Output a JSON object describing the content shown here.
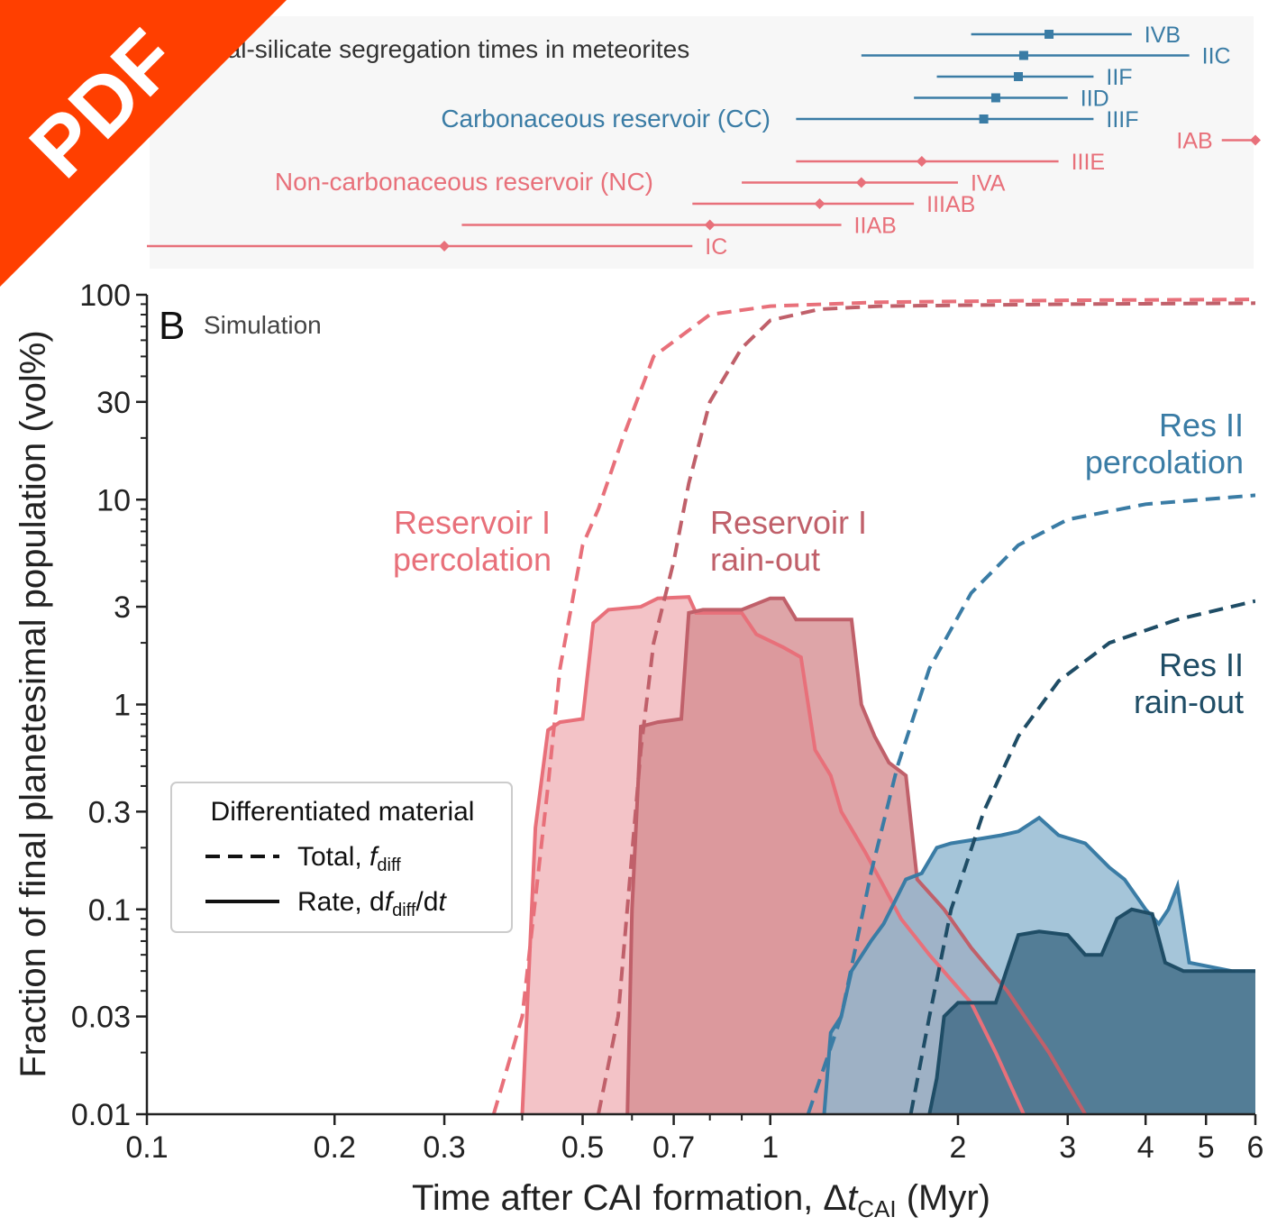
{
  "badge": {
    "label": "PDF",
    "color": "#ff3f00"
  },
  "top_panel": {
    "title": "Metal-silicate segregation times in meteorites",
    "cc_label": "Carbonaceous reservoir (CC)",
    "nc_label": "Non-carbonaceous reservoir (NC)",
    "cc_color": "#3a7ca5",
    "nc_color": "#e8707a",
    "meteorites": [
      {
        "name": "IVB",
        "group": "CC",
        "center": 2.8,
        "low": 2.1,
        "high": 3.8,
        "row": 0
      },
      {
        "name": "IIC",
        "group": "CC",
        "center": 2.55,
        "low": 1.4,
        "high": 4.7,
        "row": 1
      },
      {
        "name": "IIF",
        "group": "CC",
        "center": 2.5,
        "low": 1.85,
        "high": 3.3,
        "row": 2
      },
      {
        "name": "IID",
        "group": "CC",
        "center": 2.3,
        "low": 1.7,
        "high": 3.0,
        "row": 3
      },
      {
        "name": "IIIF",
        "group": "CC",
        "center": 2.2,
        "low": 1.1,
        "high": 3.3,
        "row": 4
      },
      {
        "name": "IAB",
        "group": "NC",
        "center": 6.0,
        "low": 5.3,
        "high": 6.0,
        "row": 5
      },
      {
        "name": "IIIE",
        "group": "NC",
        "center": 1.75,
        "low": 1.1,
        "high": 2.9,
        "row": 6
      },
      {
        "name": "IVA",
        "group": "NC",
        "center": 1.4,
        "low": 0.9,
        "high": 2.0,
        "row": 7
      },
      {
        "name": "IIIAB",
        "group": "NC",
        "center": 1.2,
        "low": 0.75,
        "high": 1.7,
        "row": 8
      },
      {
        "name": "IIAB",
        "group": "NC",
        "center": 0.8,
        "low": 0.32,
        "high": 1.3,
        "row": 9
      },
      {
        "name": "IC",
        "group": "NC",
        "center": 0.3,
        "low": 0.1,
        "high": 0.75,
        "row": 10
      }
    ]
  },
  "chart_data": {
    "type": "area",
    "panel_label": "B",
    "panel_subtitle": "Simulation",
    "xlabel_main": "Time after CAI formation, Δ",
    "xlabel_var": "t",
    "xlabel_sub": "CAI",
    "xlabel_unit": " (Myr)",
    "ylabel": "Fraction of final planetesimal population (vol%)",
    "x_scale": "log",
    "y_scale": "log",
    "xlim": [
      0.1,
      6
    ],
    "ylim": [
      0.01,
      100
    ],
    "x_ticks": [
      {
        "v": 0.1,
        "label": "0.1"
      },
      {
        "v": 0.2,
        "label": "0.2"
      },
      {
        "v": 0.3,
        "label": "0.3"
      },
      {
        "v": 0.5,
        "label": "0.5"
      },
      {
        "v": 0.7,
        "label": "0.7"
      },
      {
        "v": 1,
        "label": "1"
      },
      {
        "v": 2,
        "label": "2"
      },
      {
        "v": 3,
        "label": "3"
      },
      {
        "v": 4,
        "label": "4"
      },
      {
        "v": 5,
        "label": "5"
      },
      {
        "v": 6,
        "label": "6"
      }
    ],
    "y_ticks": [
      {
        "v": 0.01,
        "label": "0.01"
      },
      {
        "v": 0.03,
        "label": "0.03"
      },
      {
        "v": 0.1,
        "label": "0.1"
      },
      {
        "v": 0.3,
        "label": "0.3"
      },
      {
        "v": 1,
        "label": "1"
      },
      {
        "v": 3,
        "label": "3"
      },
      {
        "v": 10,
        "label": "10"
      },
      {
        "v": 30,
        "label": "30"
      },
      {
        "v": 100,
        "label": "100"
      }
    ],
    "legend": {
      "title": "Differentiated material",
      "total_label": "Total, ",
      "total_var": "f",
      "total_sub": "diff",
      "rate_label": "Rate, d",
      "rate_var": "f",
      "rate_sub": "diff",
      "rate_suffix": "/d",
      "rate_var2": "t",
      "placement": "lower-left"
    },
    "series": [
      {
        "id": "res1-perc",
        "label_lines": [
          "Reservoir I",
          "percolation"
        ],
        "color": "#e8707a",
        "fill": "#f0b4b9",
        "rate": [
          [
            0.4,
            0.01
          ],
          [
            0.41,
            0.05
          ],
          [
            0.42,
            0.25
          ],
          [
            0.44,
            0.75
          ],
          [
            0.46,
            0.82
          ],
          [
            0.5,
            0.85
          ],
          [
            0.52,
            2.5
          ],
          [
            0.55,
            2.9
          ],
          [
            0.62,
            3.0
          ],
          [
            0.66,
            3.3
          ],
          [
            0.74,
            3.35
          ],
          [
            0.76,
            2.8
          ],
          [
            0.9,
            2.8
          ],
          [
            0.95,
            2.2
          ],
          [
            1.05,
            1.9
          ],
          [
            1.12,
            1.7
          ],
          [
            1.18,
            0.6
          ],
          [
            1.25,
            0.45
          ],
          [
            1.3,
            0.3
          ],
          [
            1.42,
            0.19
          ],
          [
            1.52,
            0.13
          ],
          [
            1.62,
            0.09
          ],
          [
            1.8,
            0.06
          ],
          [
            2.1,
            0.035
          ],
          [
            2.3,
            0.02
          ],
          [
            2.55,
            0.01
          ]
        ],
        "total": [
          [
            0.36,
            0.01
          ],
          [
            0.4,
            0.03
          ],
          [
            0.44,
            0.4
          ],
          [
            0.46,
            1.5
          ],
          [
            0.5,
            6.0
          ],
          [
            0.53,
            9.0
          ],
          [
            0.58,
            20
          ],
          [
            0.65,
            50
          ],
          [
            0.8,
            80
          ],
          [
            1.0,
            88
          ],
          [
            1.5,
            92
          ],
          [
            3,
            94
          ],
          [
            6,
            95
          ]
        ]
      },
      {
        "id": "res1-rain",
        "label_lines": [
          "Reservoir I",
          "rain-out"
        ],
        "color": "#c0606a",
        "fill": "#d68f92",
        "rate": [
          [
            0.59,
            0.01
          ],
          [
            0.6,
            0.1
          ],
          [
            0.62,
            0.78
          ],
          [
            0.66,
            0.82
          ],
          [
            0.72,
            0.85
          ],
          [
            0.74,
            2.8
          ],
          [
            0.78,
            2.9
          ],
          [
            0.9,
            2.9
          ],
          [
            1.0,
            3.3
          ],
          [
            1.05,
            3.3
          ],
          [
            1.1,
            2.6
          ],
          [
            1.35,
            2.6
          ],
          [
            1.4,
            1.0
          ],
          [
            1.47,
            0.7
          ],
          [
            1.55,
            0.52
          ],
          [
            1.65,
            0.45
          ],
          [
            1.72,
            0.14
          ],
          [
            1.9,
            0.1
          ],
          [
            2.1,
            0.065
          ],
          [
            2.4,
            0.04
          ],
          [
            2.8,
            0.02
          ],
          [
            3.2,
            0.01
          ]
        ],
        "total": [
          [
            0.53,
            0.01
          ],
          [
            0.57,
            0.03
          ],
          [
            0.62,
            0.6
          ],
          [
            0.65,
            2.0
          ],
          [
            0.7,
            5.0
          ],
          [
            0.74,
            12
          ],
          [
            0.8,
            30
          ],
          [
            0.9,
            55
          ],
          [
            1.0,
            75
          ],
          [
            1.2,
            85
          ],
          [
            1.5,
            88
          ],
          [
            3,
            90
          ],
          [
            6,
            91
          ]
        ]
      },
      {
        "id": "res2-perc",
        "label_lines": [
          "Res II",
          "percolation"
        ],
        "color": "#3a7ca5",
        "fill": "#8fb7d0",
        "rate": [
          [
            1.22,
            0.01
          ],
          [
            1.25,
            0.025
          ],
          [
            1.3,
            0.03
          ],
          [
            1.35,
            0.05
          ],
          [
            1.45,
            0.07
          ],
          [
            1.52,
            0.085
          ],
          [
            1.65,
            0.14
          ],
          [
            1.75,
            0.15
          ],
          [
            1.85,
            0.2
          ],
          [
            1.95,
            0.21
          ],
          [
            2.15,
            0.22
          ],
          [
            2.35,
            0.23
          ],
          [
            2.5,
            0.24
          ],
          [
            2.7,
            0.28
          ],
          [
            2.9,
            0.23
          ],
          [
            3.2,
            0.21
          ],
          [
            3.5,
            0.16
          ],
          [
            3.7,
            0.14
          ],
          [
            4.0,
            0.1
          ],
          [
            4.2,
            0.085
          ],
          [
            4.35,
            0.1
          ],
          [
            4.5,
            0.13
          ],
          [
            4.7,
            0.055
          ],
          [
            5.5,
            0.05
          ],
          [
            6.0,
            0.05
          ]
        ],
        "total": [
          [
            1.15,
            0.01
          ],
          [
            1.3,
            0.03
          ],
          [
            1.45,
            0.15
          ],
          [
            1.6,
            0.5
          ],
          [
            1.8,
            1.5
          ],
          [
            2.1,
            3.5
          ],
          [
            2.5,
            6
          ],
          [
            3.0,
            8
          ],
          [
            4.0,
            9.5
          ],
          [
            6.0,
            10.5
          ]
        ]
      },
      {
        "id": "res2-rain",
        "label_lines": [
          "Res II",
          "rain-out"
        ],
        "color": "#1f4d66",
        "fill": "#3f6a85",
        "rate": [
          [
            1.8,
            0.01
          ],
          [
            1.85,
            0.015
          ],
          [
            1.9,
            0.03
          ],
          [
            2.0,
            0.035
          ],
          [
            2.3,
            0.035
          ],
          [
            2.5,
            0.075
          ],
          [
            2.7,
            0.078
          ],
          [
            3.0,
            0.075
          ],
          [
            3.2,
            0.06
          ],
          [
            3.4,
            0.06
          ],
          [
            3.6,
            0.09
          ],
          [
            3.8,
            0.1
          ],
          [
            4.1,
            0.095
          ],
          [
            4.3,
            0.055
          ],
          [
            4.6,
            0.05
          ],
          [
            6.0,
            0.05
          ]
        ],
        "total": [
          [
            1.68,
            0.01
          ],
          [
            1.8,
            0.03
          ],
          [
            1.95,
            0.1
          ],
          [
            2.2,
            0.3
          ],
          [
            2.5,
            0.7
          ],
          [
            2.9,
            1.3
          ],
          [
            3.5,
            2.0
          ],
          [
            4.5,
            2.6
          ],
          [
            6.0,
            3.2
          ]
        ]
      }
    ]
  }
}
